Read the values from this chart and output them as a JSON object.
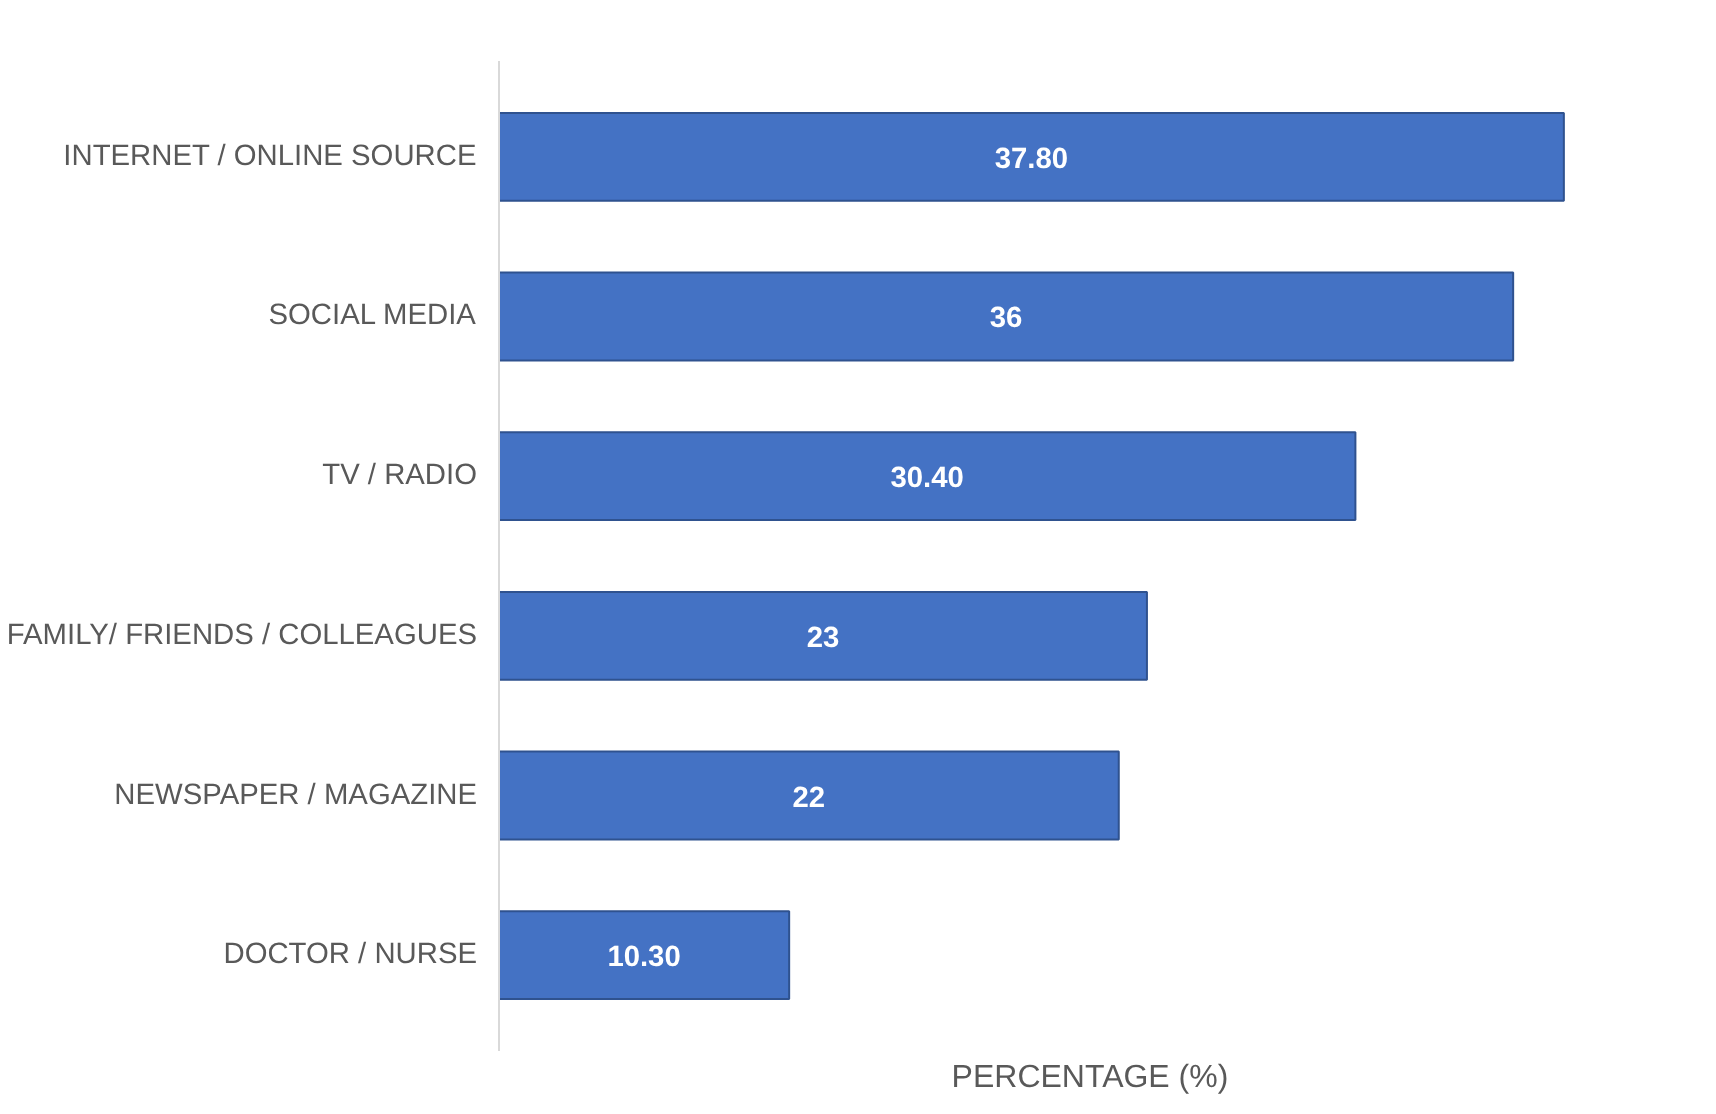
{
  "chart_data": {
    "type": "bar",
    "orientation": "horizontal",
    "xlabel": "PERCENTAGE (%)",
    "categories": [
      "INTERNET / ONLINE SOURCE",
      "SOCIAL MEDIA",
      "TV / RADIO",
      "FAMILY/ FRIENDS / COLLEAGUES",
      "NEWSPAPER / MAGAZINE",
      "DOCTOR / NURSE"
    ],
    "values": [
      37.8,
      36,
      30.4,
      23,
      22,
      10.3
    ],
    "value_labels": [
      "37.80",
      "36",
      "30.40",
      "23",
      "22",
      "10.30"
    ],
    "color": "#4472c4",
    "tick_labels": "y"
  }
}
